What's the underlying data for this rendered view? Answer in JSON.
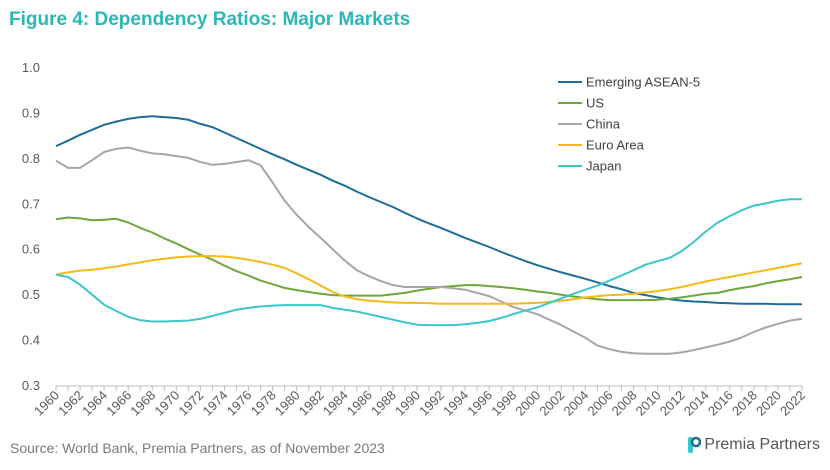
{
  "header": {
    "title": "Figure 4: Dependency Ratios: Major Markets"
  },
  "footer": {
    "source": "Source: World Bank, Premia Partners, as of November 2023",
    "logo_text": "Premia Partners"
  },
  "chart_data": {
    "type": "line",
    "ylim": [
      0.3,
      1.0
    ],
    "yticks": [
      "0.3",
      "0.4",
      "0.5",
      "0.6",
      "0.7",
      "0.8",
      "0.9",
      "1.0"
    ],
    "x": [
      1960,
      1961,
      1962,
      1963,
      1964,
      1965,
      1966,
      1967,
      1968,
      1969,
      1970,
      1971,
      1972,
      1973,
      1974,
      1975,
      1976,
      1977,
      1978,
      1979,
      1980,
      1981,
      1982,
      1983,
      1984,
      1985,
      1986,
      1987,
      1988,
      1989,
      1990,
      1991,
      1992,
      1993,
      1994,
      1995,
      1996,
      1997,
      1998,
      1999,
      2000,
      2001,
      2002,
      2003,
      2004,
      2005,
      2006,
      2007,
      2008,
      2009,
      2010,
      2011,
      2012,
      2013,
      2014,
      2015,
      2016,
      2017,
      2018,
      2019,
      2020,
      2021,
      2022
    ],
    "xticks": [
      "1960",
      "1962",
      "1964",
      "1966",
      "1968",
      "1970",
      "1972",
      "1974",
      "1976",
      "1978",
      "1980",
      "1982",
      "1984",
      "1986",
      "1988",
      "1990",
      "1992",
      "1994",
      "1996",
      "1998",
      "2000",
      "2002",
      "2004",
      "2006",
      "2008",
      "2010",
      "2012",
      "2014",
      "2016",
      "2018",
      "2020",
      "2022"
    ],
    "legend_position": "top-right",
    "series": [
      {
        "name": "Emerging ASEAN-5",
        "color": "#1c6d97",
        "values": [
          0.828,
          0.84,
          0.853,
          0.864,
          0.875,
          0.882,
          0.888,
          0.892,
          0.894,
          0.892,
          0.89,
          0.886,
          0.877,
          0.87,
          0.858,
          0.846,
          0.834,
          0.822,
          0.81,
          0.799,
          0.787,
          0.776,
          0.765,
          0.752,
          0.741,
          0.728,
          0.716,
          0.705,
          0.694,
          0.681,
          0.669,
          0.658,
          0.648,
          0.637,
          0.626,
          0.616,
          0.606,
          0.595,
          0.585,
          0.575,
          0.566,
          0.558,
          0.55,
          0.543,
          0.536,
          0.528,
          0.52,
          0.513,
          0.505,
          0.5,
          0.495,
          0.491,
          0.488,
          0.486,
          0.485,
          0.483,
          0.482,
          0.481,
          0.481,
          0.481,
          0.48,
          0.48,
          0.48
        ]
      },
      {
        "name": "US",
        "color": "#70a53b",
        "values": [
          0.667,
          0.671,
          0.669,
          0.665,
          0.666,
          0.668,
          0.66,
          0.648,
          0.638,
          0.625,
          0.614,
          0.601,
          0.589,
          0.578,
          0.565,
          0.553,
          0.543,
          0.532,
          0.524,
          0.516,
          0.511,
          0.507,
          0.503,
          0.5,
          0.499,
          0.499,
          0.499,
          0.499,
          0.502,
          0.505,
          0.51,
          0.514,
          0.518,
          0.52,
          0.522,
          0.522,
          0.52,
          0.518,
          0.515,
          0.512,
          0.508,
          0.505,
          0.501,
          0.497,
          0.494,
          0.491,
          0.489,
          0.489,
          0.489,
          0.489,
          0.49,
          0.492,
          0.495,
          0.499,
          0.503,
          0.505,
          0.511,
          0.516,
          0.52,
          0.526,
          0.531,
          0.535,
          0.54
        ]
      },
      {
        "name": "China",
        "color": "#a6a6a6",
        "values": [
          0.796,
          0.78,
          0.78,
          0.797,
          0.815,
          0.822,
          0.825,
          0.818,
          0.812,
          0.81,
          0.806,
          0.802,
          0.793,
          0.787,
          0.789,
          0.793,
          0.797,
          0.786,
          0.748,
          0.708,
          0.677,
          0.65,
          0.626,
          0.601,
          0.576,
          0.555,
          0.542,
          0.531,
          0.522,
          0.518,
          0.518,
          0.518,
          0.518,
          0.515,
          0.512,
          0.505,
          0.498,
          0.486,
          0.474,
          0.466,
          0.458,
          0.446,
          0.434,
          0.42,
          0.406,
          0.389,
          0.381,
          0.375,
          0.372,
          0.371,
          0.371,
          0.371,
          0.374,
          0.379,
          0.385,
          0.391,
          0.398,
          0.407,
          0.419,
          0.429,
          0.437,
          0.444,
          0.448
        ]
      },
      {
        "name": "Euro Area",
        "color": "#f6b91b",
        "values": [
          0.545,
          0.55,
          0.554,
          0.556,
          0.559,
          0.563,
          0.568,
          0.572,
          0.577,
          0.58,
          0.583,
          0.585,
          0.586,
          0.586,
          0.585,
          0.582,
          0.578,
          0.573,
          0.567,
          0.56,
          0.548,
          0.535,
          0.521,
          0.507,
          0.497,
          0.491,
          0.488,
          0.486,
          0.484,
          0.483,
          0.483,
          0.482,
          0.481,
          0.481,
          0.481,
          0.481,
          0.481,
          0.481,
          0.481,
          0.482,
          0.483,
          0.485,
          0.488,
          0.491,
          0.495,
          0.498,
          0.5,
          0.501,
          0.503,
          0.506,
          0.509,
          0.513,
          0.518,
          0.524,
          0.53,
          0.535,
          0.54,
          0.545,
          0.55,
          0.555,
          0.56,
          0.565,
          0.57
        ]
      },
      {
        "name": "Japan",
        "color": "#3dc5cc",
        "values": [
          0.545,
          0.54,
          0.523,
          0.501,
          0.479,
          0.465,
          0.452,
          0.445,
          0.442,
          0.442,
          0.443,
          0.444,
          0.448,
          0.454,
          0.461,
          0.468,
          0.472,
          0.475,
          0.477,
          0.478,
          0.478,
          0.478,
          0.478,
          0.472,
          0.468,
          0.464,
          0.458,
          0.452,
          0.446,
          0.44,
          0.435,
          0.434,
          0.434,
          0.434,
          0.436,
          0.439,
          0.443,
          0.45,
          0.458,
          0.466,
          0.473,
          0.483,
          0.493,
          0.503,
          0.512,
          0.521,
          0.532,
          0.543,
          0.555,
          0.567,
          0.575,
          0.582,
          0.597,
          0.617,
          0.64,
          0.66,
          0.674,
          0.687,
          0.697,
          0.702,
          0.708,
          0.711,
          0.711
        ]
      }
    ]
  }
}
